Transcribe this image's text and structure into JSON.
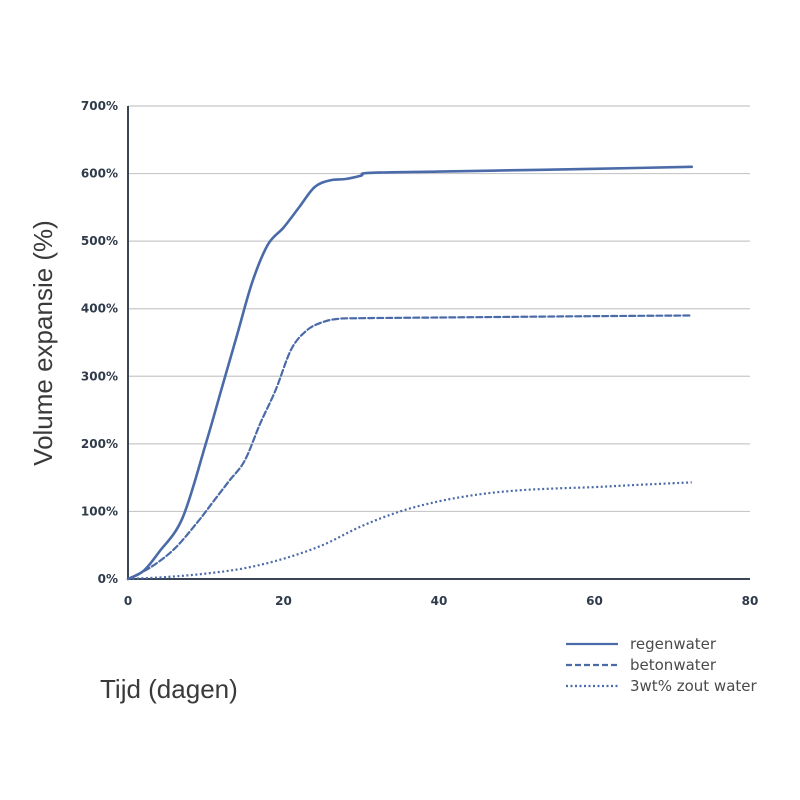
{
  "chart_data": {
    "type": "line",
    "xlabel": "Tijd (dagen)",
    "ylabel": "Volume expansie (%)",
    "xlim": [
      0,
      80
    ],
    "ylim": [
      0,
      700
    ],
    "x_ticks": [
      0,
      20,
      40,
      60,
      80
    ],
    "y_ticks": [
      0,
      100,
      200,
      300,
      400,
      500,
      600,
      700
    ],
    "y_tick_suffix": "%",
    "grid": "horizontal",
    "legend_position": "bottom-right",
    "series": [
      {
        "name": "regenwater",
        "style": "solid",
        "color": "#4a6aa8",
        "points": [
          [
            0,
            0
          ],
          [
            2,
            12
          ],
          [
            4,
            40
          ],
          [
            7,
            90
          ],
          [
            10,
            200
          ],
          [
            12,
            280
          ],
          [
            14,
            360
          ],
          [
            16,
            440
          ],
          [
            18,
            495
          ],
          [
            20,
            520
          ],
          [
            22,
            550
          ],
          [
            24,
            580
          ],
          [
            26,
            590
          ],
          [
            28,
            592
          ],
          [
            30,
            597
          ],
          [
            31,
            601
          ],
          [
            40,
            603
          ],
          [
            50,
            605
          ],
          [
            60,
            607
          ],
          [
            72.5,
            610
          ]
        ]
      },
      {
        "name": "betonwater",
        "style": "dashed",
        "color": "#4a6aa8",
        "points": [
          [
            0,
            0
          ],
          [
            3,
            18
          ],
          [
            6,
            45
          ],
          [
            9,
            85
          ],
          [
            11,
            115
          ],
          [
            13,
            145
          ],
          [
            15,
            175
          ],
          [
            17,
            230
          ],
          [
            19,
            280
          ],
          [
            21,
            340
          ],
          [
            23,
            368
          ],
          [
            25,
            380
          ],
          [
            27,
            385
          ],
          [
            30,
            386
          ],
          [
            40,
            387
          ],
          [
            50,
            388
          ],
          [
            60,
            389
          ],
          [
            72.5,
            390
          ]
        ]
      },
      {
        "name": "3wt% zout water",
        "style": "dotted",
        "color": "#4a6aa8",
        "points": [
          [
            0,
            0
          ],
          [
            5,
            3
          ],
          [
            10,
            8
          ],
          [
            15,
            16
          ],
          [
            20,
            30
          ],
          [
            25,
            50
          ],
          [
            30,
            78
          ],
          [
            35,
            100
          ],
          [
            40,
            115
          ],
          [
            45,
            125
          ],
          [
            50,
            131
          ],
          [
            55,
            134
          ],
          [
            60,
            136
          ],
          [
            65,
            139
          ],
          [
            72.5,
            143
          ]
        ]
      }
    ]
  }
}
